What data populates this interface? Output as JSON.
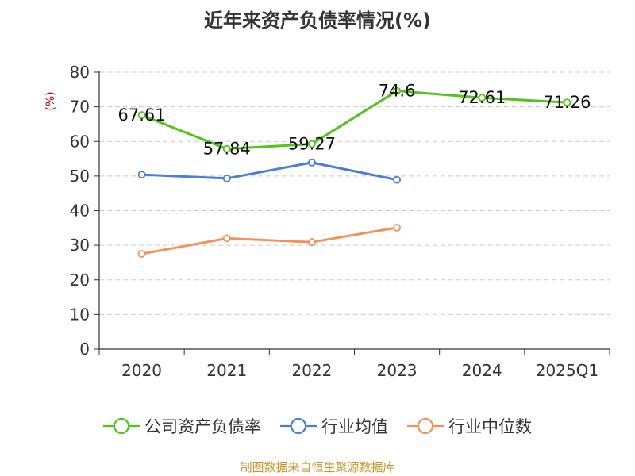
{
  "chart_data": {
    "type": "line",
    "title": "近年来资产负债率情况(%)",
    "ylabel": "(%)",
    "xlabel": "",
    "categories": [
      "2020",
      "2021",
      "2022",
      "2023",
      "2024",
      "2025Q1"
    ],
    "ylim": [
      0,
      80
    ],
    "yticks": [
      0,
      10,
      20,
      30,
      40,
      50,
      60,
      70,
      80
    ],
    "grid": true,
    "legend_position": "bottom",
    "series": [
      {
        "name": "公司资产负债率",
        "color": "#52c41a",
        "values": [
          67.61,
          57.84,
          59.27,
          74.6,
          72.61,
          71.26
        ],
        "labels": [
          "67.61",
          "57.84",
          "59.27",
          "74.6",
          "72.61",
          "71.26"
        ]
      },
      {
        "name": "行业均值",
        "color": "#4a7fd6",
        "values": [
          50.4,
          49.3,
          53.9,
          48.9,
          null,
          null
        ]
      },
      {
        "name": "行业中位数",
        "color": "#f5925b",
        "values": [
          27.5,
          32.0,
          30.9,
          35.1,
          null,
          null
        ]
      }
    ]
  },
  "source": {
    "text": "制图数据来自恒生聚源数据库",
    "color": "#c8962a"
  },
  "colors": {
    "axis": "#333333",
    "grid": "#cccccc",
    "ylabel": "#cc0000"
  }
}
